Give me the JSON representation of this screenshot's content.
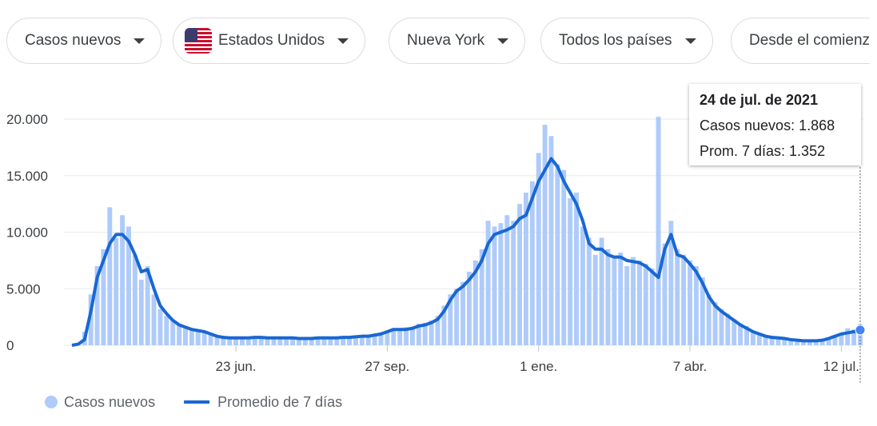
{
  "filters": [
    "Casos nuevos",
    "Estados Unidos",
    "Nueva York",
    "Todos los países",
    "Desde el comienz"
  ],
  "chart_data": {
    "type": "bar_line",
    "categories": [
      null,
      null,
      null,
      null,
      null,
      null,
      null,
      null,
      null,
      null,
      null,
      null,
      null,
      null,
      null,
      null,
      null,
      null,
      null,
      null,
      null,
      null,
      null,
      null,
      null,
      null,
      "23 jun.",
      null,
      null,
      null,
      null,
      null,
      null,
      null,
      null,
      null,
      null,
      null,
      null,
      null,
      null,
      null,
      null,
      null,
      null,
      null,
      null,
      null,
      null,
      null,
      "27 sep.",
      null,
      null,
      null,
      null,
      null,
      null,
      null,
      null,
      null,
      null,
      null,
      null,
      null,
      null,
      null,
      null,
      null,
      null,
      null,
      null,
      null,
      null,
      null,
      "1 ene.",
      null,
      null,
      null,
      null,
      null,
      null,
      null,
      null,
      null,
      null,
      null,
      null,
      null,
      null,
      null,
      null,
      null,
      null,
      null,
      null,
      null,
      null,
      null,
      "7 abr.",
      null,
      null,
      null,
      null,
      null,
      null,
      null,
      null,
      null,
      null,
      null,
      null,
      null,
      null,
      null,
      null,
      null,
      null,
      null,
      null,
      null,
      null,
      null,
      "12 jul.",
      null,
      null,
      null
    ],
    "series": [
      {
        "name": "Casos nuevos",
        "type": "bar",
        "color": "#aecbfa",
        "values": [
          0,
          200,
          1200,
          4500,
          7000,
          8500,
          12200,
          9500,
          11500,
          10500,
          8000,
          5800,
          7000,
          4500,
          3200,
          2600,
          2300,
          1900,
          1500,
          1500,
          1300,
          1100,
          900,
          800,
          700,
          700,
          600,
          650,
          700,
          750,
          650,
          600,
          700,
          650,
          600,
          700,
          600,
          550,
          650,
          700,
          600,
          650,
          700,
          750,
          650,
          800,
          850,
          750,
          1000,
          1100,
          1300,
          1500,
          1300,
          1600,
          1500,
          1900,
          2000,
          2200,
          2600,
          3500,
          4500,
          5000,
          5600,
          6500,
          7500,
          8500,
          11000,
          10500,
          10800,
          11500,
          11000,
          12500,
          13500,
          14500,
          17000,
          19500,
          18500,
          16000,
          15500,
          13000,
          13500,
          10500,
          9500,
          8000,
          9500,
          8500,
          7800,
          8200,
          7000,
          7800,
          7500,
          7200,
          6800,
          20200,
          9000,
          11000,
          8500,
          8000,
          7500,
          7000,
          6000,
          4500,
          3800,
          3200,
          2800,
          2300,
          1900,
          1700,
          1300,
          1000,
          900,
          750,
          700,
          650,
          550,
          500,
          450,
          400,
          450,
          500,
          700,
          900,
          1100,
          1500,
          1400,
          1868
        ]
      },
      {
        "name": "Promedio de 7 días",
        "type": "line",
        "color": "#1967d2",
        "values": [
          0,
          100,
          500,
          3000,
          6000,
          7500,
          9000,
          9800,
          9800,
          9200,
          8000,
          6500,
          6700,
          5000,
          3500,
          2800,
          2200,
          1800,
          1600,
          1400,
          1300,
          1200,
          1000,
          800,
          700,
          650,
          650,
          650,
          650,
          700,
          700,
          650,
          650,
          650,
          650,
          650,
          600,
          600,
          600,
          650,
          650,
          650,
          650,
          700,
          700,
          750,
          800,
          800,
          900,
          1000,
          1200,
          1400,
          1400,
          1400,
          1500,
          1700,
          1800,
          2000,
          2300,
          3000,
          4000,
          4800,
          5200,
          5800,
          6500,
          7500,
          9000,
          9800,
          10000,
          10200,
          10500,
          11200,
          11500,
          13000,
          14500,
          15500,
          16500,
          15800,
          14500,
          13500,
          12500,
          11000,
          9000,
          8500,
          8500,
          8000,
          7800,
          7800,
          7500,
          7400,
          7300,
          7000,
          6500,
          6000,
          8500,
          9800,
          8000,
          7800,
          7200,
          6500,
          5500,
          4300,
          3500,
          3000,
          2600,
          2200,
          1800,
          1500,
          1200,
          1000,
          800,
          700,
          650,
          600,
          500,
          450,
          400,
          400,
          400,
          450,
          600,
          800,
          1000,
          1100,
          1200,
          1352
        ]
      }
    ],
    "ylim": [
      0,
      20000
    ],
    "yticks": [
      0,
      {
        "value": 5000,
        "label": "5.000"
      },
      {
        "value": 10000,
        "label": "10.000"
      },
      {
        "value": 15000,
        "label": "15.000"
      },
      {
        "value": 20000,
        "label": "20.000"
      }
    ],
    "grid": true,
    "legend": "bottom-left",
    "tooltip": {
      "title": "24 de jul. de 2021",
      "lines": [
        "Casos nuevos: 1.868",
        "Prom. 7 días: 1.352"
      ]
    }
  }
}
